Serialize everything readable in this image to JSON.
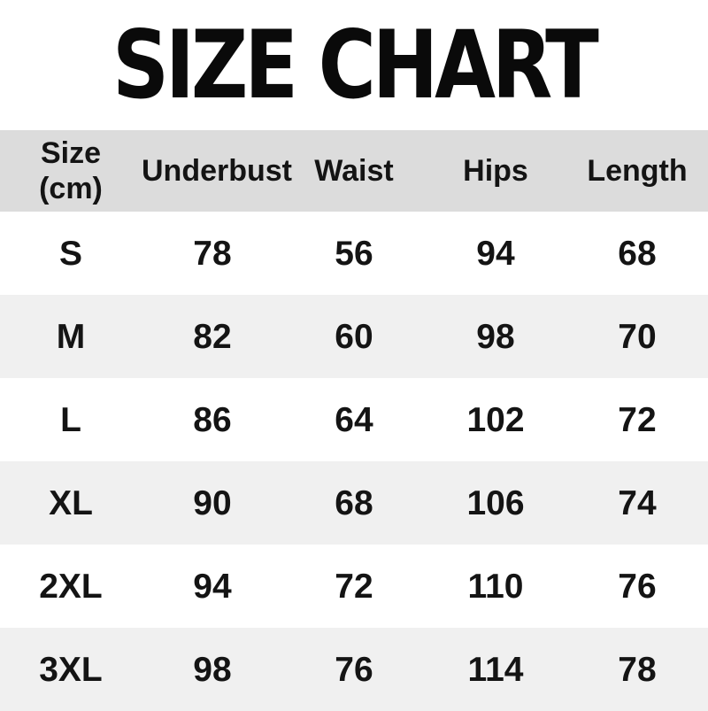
{
  "title": "SIZE CHART",
  "colors": {
    "page_bg": "#ffffff",
    "header_bg": "#dcdcdc",
    "stripe_bg": "#f0f0f0",
    "text": "#141414",
    "title": "#0a0a0a"
  },
  "table": {
    "header": {
      "size_line1": "Size",
      "size_line2": "(cm)",
      "underbust": "Underbust",
      "waist": "Waist",
      "hips": "Hips",
      "length": "Length"
    },
    "rows": [
      {
        "size": "S",
        "underbust": "78",
        "waist": "56",
        "hips": "94",
        "length": "68"
      },
      {
        "size": "M",
        "underbust": "82",
        "waist": "60",
        "hips": "98",
        "length": "70"
      },
      {
        "size": "L",
        "underbust": "86",
        "waist": "64",
        "hips": "102",
        "length": "72"
      },
      {
        "size": "XL",
        "underbust": "90",
        "waist": "68",
        "hips": "106",
        "length": "74"
      },
      {
        "size": "2XL",
        "underbust": "94",
        "waist": "72",
        "hips": "110",
        "length": "76"
      },
      {
        "size": "3XL",
        "underbust": "98",
        "waist": "76",
        "hips": "114",
        "length": "78"
      }
    ]
  },
  "chart_data": {
    "type": "table",
    "title": "SIZE CHART",
    "columns": [
      "Size (cm)",
      "Underbust",
      "Waist",
      "Hips",
      "Length"
    ],
    "rows": [
      [
        "S",
        78,
        56,
        94,
        68
      ],
      [
        "M",
        82,
        60,
        98,
        70
      ],
      [
        "L",
        86,
        64,
        102,
        72
      ],
      [
        "XL",
        90,
        68,
        106,
        74
      ],
      [
        "2XL",
        94,
        72,
        110,
        76
      ],
      [
        "3XL",
        98,
        76,
        114,
        78
      ]
    ],
    "layout": {
      "zebra_striping": true,
      "striped_rows": [
        "M",
        "XL",
        "3XL"
      ],
      "header_background": "#dcdcdc",
      "stripe_background": "#f0f0f0"
    }
  }
}
